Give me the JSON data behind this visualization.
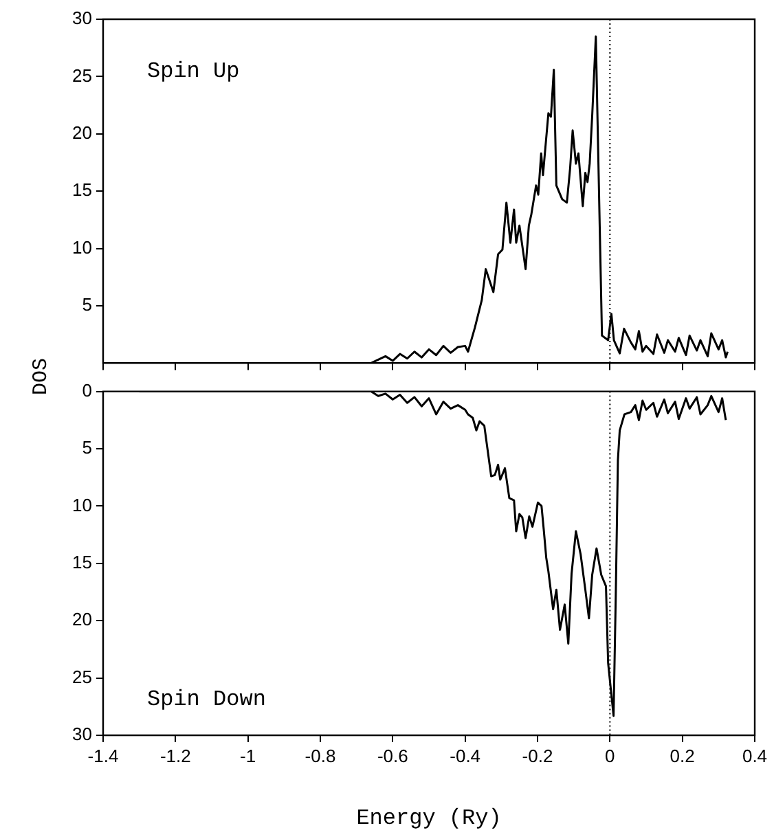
{
  "chart_data": [
    {
      "type": "line",
      "ylabel": "DOS",
      "annotations": [
        "Spin Up"
      ],
      "xlim": [
        -1.4,
        0.4
      ],
      "xticks": [
        -1.4,
        -1.2,
        -1,
        -0.8,
        -0.6,
        -0.4,
        -0.2,
        0,
        0.2,
        0.4
      ],
      "ylim": [
        0,
        30
      ],
      "yticks": [
        5,
        10,
        15,
        20,
        25,
        30
      ],
      "tick_labels": "y",
      "marker": "none",
      "ref_lines": [
        {
          "axis": "x",
          "value": 0,
          "line_style": "dotted",
          "color": "#000000"
        }
      ],
      "x": [
        -1.3,
        -0.68,
        -0.66,
        -0.64,
        -0.62,
        -0.6,
        -0.58,
        -0.56,
        -0.54,
        -0.52,
        -0.5,
        -0.48,
        -0.46,
        -0.44,
        -0.42,
        -0.4,
        -0.392,
        -0.373,
        -0.354,
        -0.343,
        -0.322,
        -0.309,
        -0.297,
        -0.286,
        -0.275,
        -0.265,
        -0.259,
        -0.25,
        -0.233,
        -0.224,
        -0.217,
        -0.204,
        -0.198,
        -0.19,
        -0.185,
        -0.17,
        -0.163,
        -0.155,
        -0.148,
        -0.132,
        -0.119,
        -0.11,
        -0.103,
        -0.094,
        -0.087,
        -0.075,
        -0.068,
        -0.062,
        -0.056,
        -0.049,
        -0.039,
        -0.027,
        -0.022,
        -0.005,
        0.004,
        0.011,
        0.027,
        0.039,
        0.058,
        0.07,
        0.08,
        0.09,
        0.1,
        0.12,
        0.13,
        0.15,
        0.16,
        0.18,
        0.19,
        0.21,
        0.22,
        0.24,
        0.25,
        0.27,
        0.28,
        0.3,
        0.31,
        0.32,
        0.325
      ],
      "series": [
        {
          "color": "#000000",
          "values": [
            0,
            0,
            0,
            0.3,
            0.6,
            0.2,
            0.8,
            0.4,
            1.0,
            0.5,
            1.2,
            0.7,
            1.5,
            0.9,
            1.4,
            1.5,
            1.0,
            3.1,
            5.5,
            8.2,
            6.2,
            9.5,
            9.9,
            14.0,
            10.5,
            13.4,
            10.5,
            12.0,
            8.2,
            12.0,
            13.0,
            15.5,
            14.7,
            18.3,
            16.4,
            21.8,
            21.5,
            25.6,
            15.5,
            14.3,
            14.0,
            17.0,
            20.3,
            17.4,
            18.3,
            13.7,
            16.6,
            15.8,
            17.4,
            21.6,
            28.5,
            10.0,
            2.4,
            2.0,
            4.3,
            2.0,
            0.85,
            3.0,
            1.8,
            1.2,
            2.8,
            1.0,
            1.5,
            0.8,
            2.5,
            0.9,
            2.0,
            1.0,
            2.2,
            0.7,
            2.4,
            1.1,
            2.0,
            0.6,
            2.6,
            1.2,
            2.0,
            0.5,
            1.0
          ]
        }
      ]
    },
    {
      "type": "line",
      "xlabel": "Energy (Ry)",
      "annotations": [
        "Spin Down"
      ],
      "xlim": [
        -1.4,
        0.4
      ],
      "xticks": [
        -1.4,
        -1.2,
        -1,
        -0.8,
        -0.6,
        -0.4,
        -0.2,
        0,
        0.2,
        0.4
      ],
      "ylim": [
        30,
        0
      ],
      "yticks": [
        0,
        5,
        10,
        15,
        20,
        25,
        30
      ],
      "marker": "none",
      "ref_lines": [
        {
          "axis": "x",
          "value": 0,
          "line_style": "dotted",
          "color": "#000000"
        }
      ],
      "x": [
        -1.3,
        -0.68,
        -0.66,
        -0.64,
        -0.62,
        -0.6,
        -0.58,
        -0.56,
        -0.54,
        -0.52,
        -0.5,
        -0.48,
        -0.46,
        -0.44,
        -0.42,
        -0.4,
        -0.392,
        -0.379,
        -0.369,
        -0.36,
        -0.347,
        -0.328,
        -0.318,
        -0.309,
        -0.303,
        -0.29,
        -0.278,
        -0.265,
        -0.259,
        -0.25,
        -0.242,
        -0.233,
        -0.223,
        -0.214,
        -0.199,
        -0.189,
        -0.183,
        -0.176,
        -0.17,
        -0.157,
        -0.148,
        -0.138,
        -0.125,
        -0.115,
        -0.106,
        -0.094,
        -0.081,
        -0.068,
        -0.058,
        -0.049,
        -0.037,
        -0.024,
        -0.011,
        -0.005,
        0.01,
        0.016,
        0.022,
        0.027,
        0.04,
        0.058,
        0.07,
        0.08,
        0.09,
        0.1,
        0.12,
        0.13,
        0.15,
        0.16,
        0.18,
        0.19,
        0.21,
        0.22,
        0.24,
        0.25,
        0.27,
        0.28,
        0.3,
        0.31,
        0.32
      ],
      "series": [
        {
          "color": "#000000",
          "values": [
            0,
            0,
            0,
            0.4,
            0.2,
            0.7,
            0.3,
            1.0,
            0.5,
            1.3,
            0.6,
            2.0,
            0.9,
            1.5,
            1.2,
            1.6,
            2.0,
            2.3,
            3.4,
            2.6,
            3.0,
            7.4,
            7.3,
            6.4,
            7.7,
            6.7,
            9.3,
            9.5,
            12.2,
            10.7,
            11.0,
            12.8,
            10.9,
            11.8,
            9.7,
            10.0,
            12.0,
            14.5,
            15.7,
            19.0,
            17.3,
            20.8,
            18.6,
            22.0,
            15.9,
            12.2,
            14.2,
            17.3,
            19.8,
            16.0,
            13.7,
            16.0,
            17.0,
            23.7,
            28.3,
            18.0,
            6.0,
            3.4,
            2.0,
            1.8,
            1.2,
            2.5,
            0.8,
            1.6,
            1.0,
            2.2,
            0.7,
            1.9,
            0.9,
            2.4,
            0.6,
            1.5,
            0.5,
            2.0,
            1.2,
            0.4,
            1.8,
            0.6,
            2.5
          ]
        }
      ]
    }
  ]
}
